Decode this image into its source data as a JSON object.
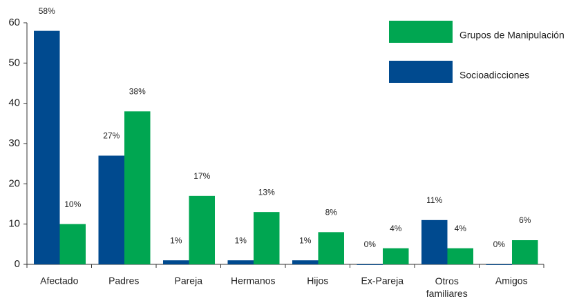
{
  "chart_data": {
    "type": "bar",
    "categories": [
      "Afectado",
      "Padres",
      "Pareja",
      "Hermanos",
      "Hijos",
      "Ex-Pareja",
      "Otros familiares",
      "Amigos"
    ],
    "series": [
      {
        "name": "Socioadicciones",
        "color": "#004a8f",
        "values": [
          58,
          27,
          1,
          1,
          1,
          0,
          11,
          0
        ],
        "value_labels": [
          "58%",
          "27%",
          "1%",
          "1%",
          "1%",
          "0%",
          "11%",
          "0%"
        ]
      },
      {
        "name": "Grupos de Manipulación",
        "color": "#00a651",
        "values": [
          10,
          38,
          17,
          13,
          8,
          4,
          4,
          6
        ],
        "value_labels": [
          "10%",
          "38%",
          "17%",
          "13%",
          "8%",
          "4%",
          "4%",
          "6%"
        ]
      }
    ],
    "ylim": [
      0,
      60
    ],
    "yticks": [
      0,
      10,
      20,
      30,
      40,
      50,
      60
    ],
    "grid": false,
    "legend": "upper right"
  }
}
